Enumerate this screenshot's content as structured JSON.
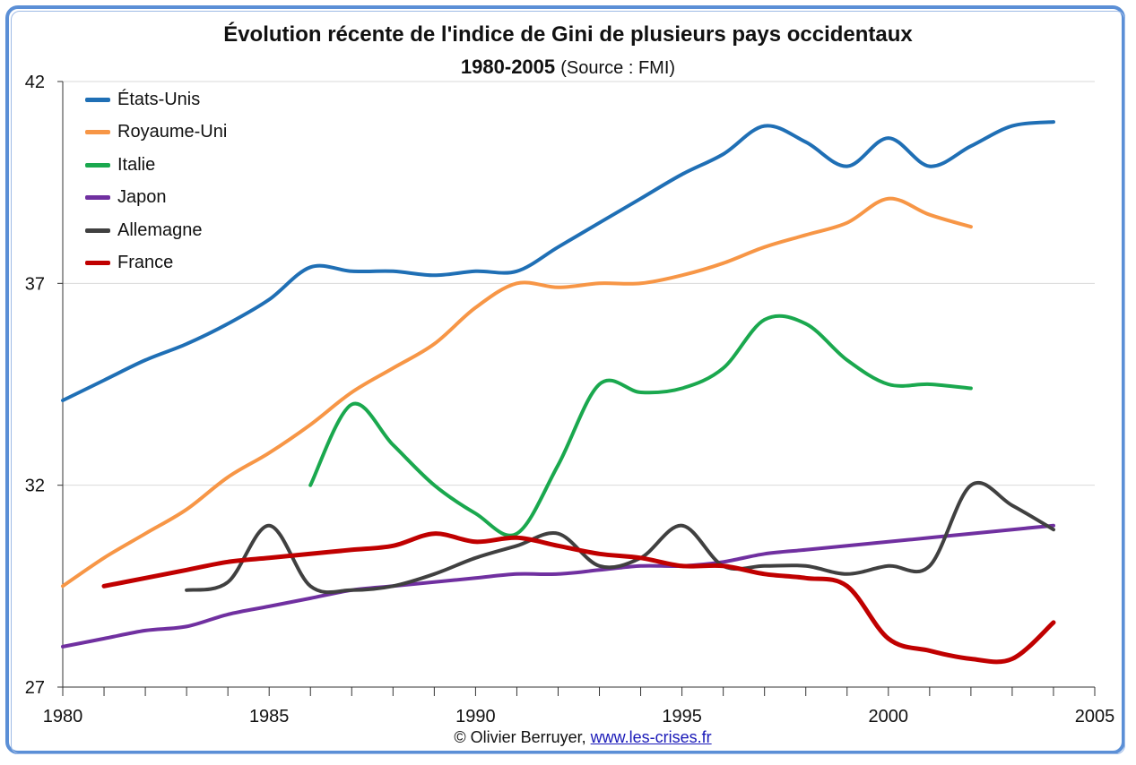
{
  "title": "Évolution récente de l'indice de Gini de plusieurs pays occidentaux",
  "subtitle_period": "1980-2005",
  "subtitle_source": "(Source : FMI)",
  "footer": {
    "credit": "© Olivier Berruyer,",
    "link_text": "www.les-crises.fr"
  },
  "chart_data": {
    "type": "line",
    "title": "Évolution récente de l'indice de Gini de plusieurs pays occidentaux",
    "subtitle": "1980-2005 (Source : FMI)",
    "xlabel": "",
    "ylabel": "",
    "xlim": [
      1980,
      2005
    ],
    "ylim": [
      27,
      42
    ],
    "x_ticks": [
      1980,
      1985,
      1990,
      1995,
      2000,
      2005
    ],
    "y_ticks": [
      27,
      32,
      37,
      42
    ],
    "grid": "horizontal",
    "legend_position": "top-left",
    "series": [
      {
        "name": "États-Unis",
        "color": "#1f6fb5",
        "x": [
          1980,
          1981,
          1982,
          1983,
          1984,
          1985,
          1986,
          1987,
          1988,
          1989,
          1990,
          1991,
          1992,
          1993,
          1994,
          1995,
          1996,
          1997,
          1998,
          1999,
          2000,
          2001,
          2002,
          2003,
          2004
        ],
        "y": [
          34.1,
          34.6,
          35.1,
          35.5,
          36.0,
          36.6,
          37.4,
          37.3,
          37.3,
          37.2,
          37.3,
          37.3,
          37.9,
          38.5,
          39.1,
          39.7,
          40.2,
          40.9,
          40.5,
          39.9,
          40.6,
          39.9,
          40.4,
          40.9,
          41.0
        ]
      },
      {
        "name": "Royaume-Uni",
        "color": "#f79646",
        "x": [
          1980,
          1981,
          1982,
          1983,
          1984,
          1985,
          1986,
          1987,
          1988,
          1989,
          1990,
          1991,
          1992,
          1993,
          1994,
          1995,
          1996,
          1997,
          1998,
          1999,
          2000,
          2001,
          2002
        ],
        "y": [
          29.5,
          30.2,
          30.8,
          31.4,
          32.2,
          32.8,
          33.5,
          34.3,
          34.9,
          35.5,
          36.4,
          37.0,
          36.9,
          37.0,
          37.0,
          37.2,
          37.5,
          37.9,
          38.2,
          38.5,
          39.1,
          38.7,
          38.4
        ]
      },
      {
        "name": "Italie",
        "color": "#1aa84e",
        "x": [
          1986,
          1987,
          1988,
          1989,
          1990,
          1991,
          1992,
          1993,
          1994,
          1995,
          1996,
          1997,
          1998,
          1999,
          2000,
          2001,
          2002
        ],
        "y": [
          32.0,
          34.0,
          33.0,
          32.0,
          31.3,
          30.8,
          32.5,
          34.5,
          34.3,
          34.4,
          34.9,
          36.1,
          36.0,
          35.1,
          34.5,
          34.5,
          34.4
        ]
      },
      {
        "name": "Japon",
        "color": "#7030a0",
        "x": [
          1980,
          1981,
          1982,
          1983,
          1984,
          1985,
          1986,
          1987,
          1988,
          1989,
          1990,
          1991,
          1992,
          1993,
          1994,
          1995,
          1996,
          1997,
          1998,
          1999,
          2000,
          2001,
          2002,
          2003,
          2004
        ],
        "y": [
          28.0,
          28.2,
          28.4,
          28.5,
          28.8,
          29.0,
          29.2,
          29.4,
          29.5,
          29.6,
          29.7,
          29.8,
          29.8,
          29.9,
          30.0,
          30.0,
          30.1,
          30.3,
          30.4,
          30.5,
          30.6,
          30.7,
          30.8,
          30.9,
          31.0
        ]
      },
      {
        "name": "Allemagne",
        "color": "#404040",
        "x": [
          1983,
          1984,
          1985,
          1986,
          1987,
          1988,
          1989,
          1990,
          1991,
          1992,
          1993,
          1994,
          1995,
          1996,
          1997,
          1998,
          1999,
          2000,
          2001,
          2002,
          2003,
          2004
        ],
        "y": [
          29.4,
          29.6,
          31.0,
          29.5,
          29.4,
          29.5,
          29.8,
          30.2,
          30.5,
          30.8,
          30.0,
          30.2,
          31.0,
          30.0,
          30.0,
          30.0,
          29.8,
          30.0,
          30.0,
          32.0,
          31.5,
          30.9
        ]
      },
      {
        "name": "France",
        "color": "#c00000",
        "x": [
          1981,
          1982,
          1983,
          1984,
          1985,
          1986,
          1987,
          1988,
          1989,
          1990,
          1991,
          1992,
          1993,
          1994,
          1995,
          1996,
          1997,
          1998,
          1999,
          2000,
          2001,
          2002,
          2003,
          2004
        ],
        "y": [
          29.5,
          29.7,
          29.9,
          30.1,
          30.2,
          30.3,
          30.4,
          30.5,
          30.8,
          30.6,
          30.7,
          30.5,
          30.3,
          30.2,
          30.0,
          30.0,
          29.8,
          29.7,
          29.5,
          28.2,
          27.9,
          27.7,
          27.7,
          28.6
        ]
      }
    ]
  }
}
